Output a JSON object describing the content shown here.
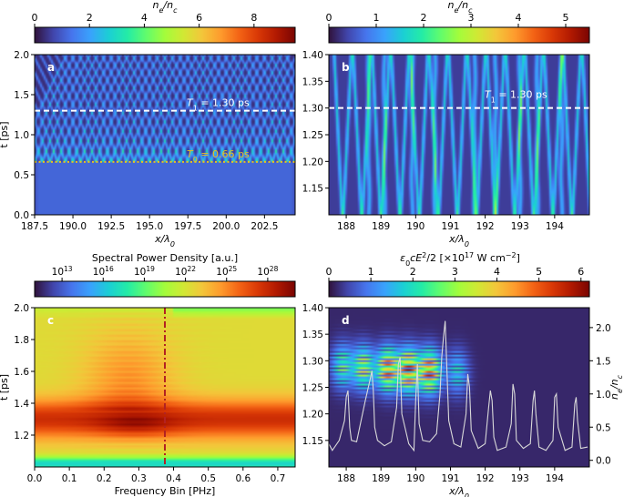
{
  "colors": {
    "colormap": [
      "#30123b",
      "#4145ab",
      "#4675ed",
      "#39a2fc",
      "#1bcfd4",
      "#24eca6",
      "#61fc6c",
      "#a4fc3b",
      "#d1e834",
      "#f3c63a",
      "#fe9b2d",
      "#f36315",
      "#d93806",
      "#b11901",
      "#7a0402"
    ],
    "background_field": "#1a1043",
    "dashed_white": "#ffffff",
    "dotted_gold": "#e8c020",
    "dashdot_red": "#b22222",
    "ne_line": "#d9d9d9"
  },
  "chart_data": [
    {
      "panel": "a",
      "type": "heatmap",
      "colorbar": {
        "label": "n_e/n_c",
        "label_main": "n",
        "label_sub1": "e",
        "label_sep": "/n",
        "label_sub2": "c",
        "range": [
          0,
          9.5
        ],
        "ticks": [
          0,
          2,
          4,
          6,
          8
        ],
        "tick_labels": [
          "0",
          "2",
          "4",
          "6",
          "8"
        ]
      },
      "xlabel_main": "x/λ",
      "xlabel_sub": "0",
      "ylabel": "t [ps]",
      "xlim": [
        187.5,
        204.5
      ],
      "ylim": [
        0.0,
        2.0
      ],
      "xticks": [
        187.5,
        190.0,
        192.5,
        195.0,
        197.5,
        200.0,
        202.5
      ],
      "xtick_labels": [
        "187.5",
        "190.0",
        "192.5",
        "195.0",
        "197.5",
        "200.0",
        "202.5"
      ],
      "yticks": [
        0.0,
        0.5,
        1.0,
        1.5,
        2.0
      ],
      "ytick_labels": [
        "0.0",
        "0.5",
        "1.0",
        "1.5",
        "2.0"
      ],
      "annotations": [
        {
          "t": 1.3,
          "style": "dashed",
          "color": "white",
          "text_main": "T",
          "text_sub": "1",
          "text_rest": " = 1.30 ps"
        },
        {
          "t": 0.66,
          "style": "dotted",
          "color": "gold",
          "text_main": "T",
          "text_sub": "0",
          "text_rest": " = 0.66 ps"
        }
      ],
      "bulk_top": 0.66,
      "break_time": 0.66,
      "spacing": 0.5
    },
    {
      "panel": "b",
      "type": "heatmap",
      "colorbar": {
        "label": "n_e/n_c",
        "label_main": "n",
        "label_sub1": "e",
        "label_sep": "/n",
        "label_sub2": "c",
        "range": [
          0,
          5.5
        ],
        "ticks": [
          0,
          1,
          2,
          3,
          4,
          5
        ],
        "tick_labels": [
          "0",
          "1",
          "2",
          "3",
          "4",
          "5"
        ]
      },
      "xlabel_main": "x/λ",
      "xlabel_sub": "0",
      "xlim": [
        187.5,
        195.0
      ],
      "ylim": [
        1.1,
        1.4
      ],
      "xticks": [
        188,
        189,
        190,
        191,
        192,
        193,
        194
      ],
      "xtick_labels": [
        "188",
        "189",
        "190",
        "191",
        "192",
        "193",
        "194"
      ],
      "yticks": [
        1.15,
        1.2,
        1.25,
        1.3,
        1.35,
        1.4
      ],
      "ytick_labels": [
        "1.15",
        "1.20",
        "1.25",
        "1.30",
        "1.35",
        "1.40"
      ],
      "annotations": [
        {
          "t": 1.3,
          "style": "dashed",
          "color": "white",
          "text_main": "T",
          "text_sub": "1",
          "text_rest": " = 1.30 ps"
        }
      ],
      "spacing": 0.55
    },
    {
      "panel": "c",
      "type": "heatmap",
      "colorbar": {
        "label": "Spectral Power Density [a.u.]",
        "scale": "log",
        "range": [
          11,
          30
        ],
        "ticks": [
          13,
          16,
          19,
          22,
          25,
          28
        ],
        "tick_base": "10",
        "tick_exps": [
          "13",
          "16",
          "19",
          "22",
          "25",
          "28"
        ]
      },
      "xlabel": "Frequency Bin [PHz]",
      "ylabel": "t [ps]",
      "xlim": [
        0.0,
        0.75
      ],
      "ylim": [
        1.0,
        2.0
      ],
      "xticks": [
        0.0,
        0.1,
        0.2,
        0.3,
        0.4,
        0.5,
        0.6,
        0.7
      ],
      "xtick_labels": [
        "0.0",
        "0.1",
        "0.2",
        "0.3",
        "0.4",
        "0.5",
        "0.6",
        "0.7"
      ],
      "yticks": [
        1.2,
        1.4,
        1.6,
        1.8,
        2.0
      ],
      "ytick_labels": [
        "1.2",
        "1.4",
        "1.6",
        "1.8",
        "2.0"
      ],
      "marker_frequency": 0.375,
      "hot_spot": {
        "frequency": 0.29,
        "t": 1.27
      }
    },
    {
      "panel": "d",
      "type": "heatmap",
      "colorbar": {
        "label_parts": [
          "ε",
          "0",
          "cE",
          "2",
          "/2 [×10",
          "17",
          " W cm",
          "−2",
          "]"
        ],
        "range": [
          0,
          6.2
        ],
        "ticks": [
          0,
          1,
          2,
          3,
          4,
          5,
          6
        ],
        "tick_labels": [
          "0",
          "1",
          "2",
          "3",
          "4",
          "5",
          "6"
        ]
      },
      "xlabel_main": "x/λ",
      "xlabel_sub": "0",
      "right_ylabel_main": "n",
      "right_ylabel_sub1": "e",
      "right_ylabel_sep": "/n",
      "right_ylabel_sub2": "c",
      "xlim": [
        187.5,
        195.0
      ],
      "ylim": [
        1.1,
        1.4
      ],
      "xticks": [
        188,
        189,
        190,
        191,
        192,
        193,
        194
      ],
      "xtick_labels": [
        "188",
        "189",
        "190",
        "191",
        "192",
        "193",
        "194"
      ],
      "yticks": [
        1.15,
        1.2,
        1.25,
        1.3,
        1.35,
        1.4
      ],
      "ytick_labels": [
        "1.15",
        "1.20",
        "1.25",
        "1.30",
        "1.35",
        "1.40"
      ],
      "right_ylim": [
        -0.1,
        2.3
      ],
      "right_yticks": [
        0.0,
        0.5,
        1.0,
        1.5,
        2.0
      ],
      "right_ytick_labels": [
        "0.0",
        "0.5",
        "1.0",
        "1.5",
        "2.0"
      ],
      "field_packets": [
        {
          "x": 187.9,
          "t": 1.29,
          "peak": 3.0
        },
        {
          "x": 188.5,
          "t": 1.287,
          "peak": 4.0
        },
        {
          "x": 189.2,
          "t": 1.284,
          "peak": 5.6
        },
        {
          "x": 189.8,
          "t": 1.282,
          "peak": 6.0
        },
        {
          "x": 190.4,
          "t": 1.28,
          "peak": 5.8
        },
        {
          "x": 191.2,
          "t": 1.278,
          "peak": 2.2
        }
      ],
      "density_line": {
        "x": [
          187.5,
          187.6,
          187.8,
          187.95,
          188.0,
          188.05,
          188.1,
          188.15,
          188.3,
          188.55,
          188.7,
          188.74,
          188.78,
          188.82,
          188.9,
          189.1,
          189.3,
          189.45,
          189.5,
          189.55,
          189.6,
          189.8,
          189.95,
          190.0,
          190.05,
          190.1,
          190.2,
          190.4,
          190.6,
          190.7,
          190.75,
          190.8,
          190.85,
          190.95,
          191.1,
          191.3,
          191.45,
          191.5,
          191.55,
          191.6,
          191.8,
          192.0,
          192.1,
          192.15,
          192.2,
          192.25,
          192.35,
          192.6,
          192.75,
          192.8,
          192.85,
          192.9,
          193.1,
          193.3,
          193.38,
          193.42,
          193.46,
          193.55,
          193.75,
          193.95,
          194.0,
          194.05,
          194.1,
          194.3,
          194.5,
          194.58,
          194.62,
          194.66,
          194.75,
          194.95
        ],
        "y": [
          0.25,
          0.15,
          0.3,
          0.6,
          0.95,
          1.05,
          0.5,
          0.3,
          0.28,
          0.9,
          1.25,
          1.35,
          1.05,
          0.5,
          0.3,
          0.22,
          0.28,
          0.8,
          1.45,
          1.55,
          0.7,
          0.25,
          0.15,
          0.9,
          1.45,
          0.55,
          0.3,
          0.28,
          0.4,
          1.0,
          1.55,
          1.85,
          2.1,
          0.6,
          0.25,
          0.2,
          0.7,
          1.3,
          1.1,
          0.45,
          0.18,
          0.25,
          0.8,
          1.05,
          0.9,
          0.35,
          0.15,
          0.2,
          0.55,
          1.15,
          1.0,
          0.3,
          0.18,
          0.25,
          0.9,
          1.05,
          0.7,
          0.2,
          0.15,
          0.3,
          0.95,
          1.0,
          0.5,
          0.15,
          0.2,
          0.85,
          0.95,
          0.6,
          0.18,
          0.2
        ]
      }
    }
  ]
}
